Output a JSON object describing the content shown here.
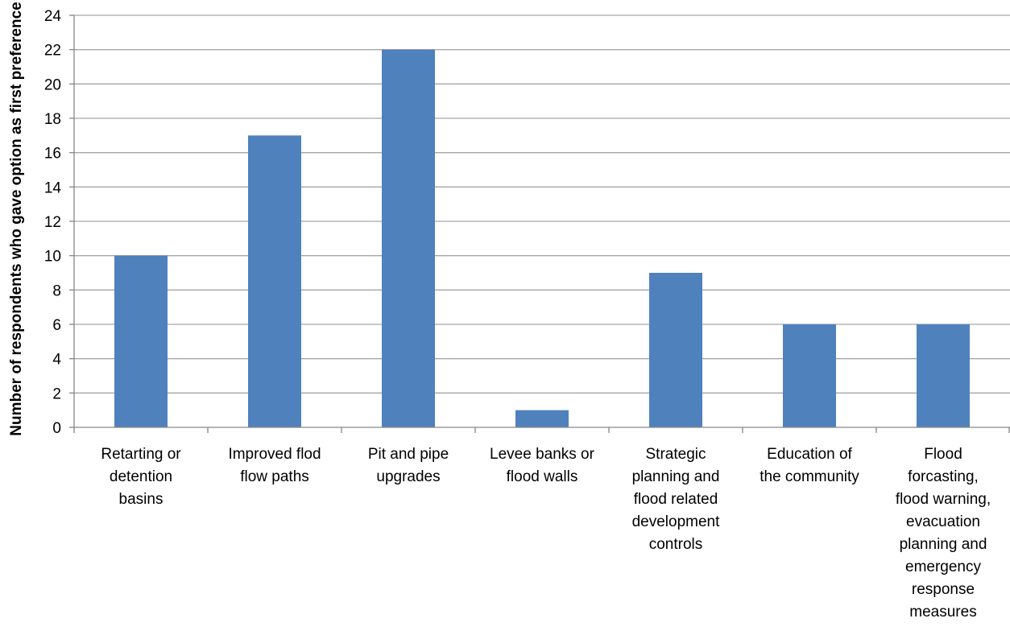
{
  "chart_data": {
    "type": "bar",
    "title": "",
    "xlabel": "",
    "ylabel": "Number of respondents who gave option as first preference",
    "ylim": [
      0,
      24
    ],
    "ytick_step": 2,
    "grid": true,
    "colors": {
      "bar": "#4f81bd",
      "grid": "#a6a6a6",
      "axis": "#868686"
    },
    "categories": [
      [
        "Retarting or",
        "detention",
        "basins"
      ],
      [
        "Improved flod",
        "flow paths"
      ],
      [
        "Pit and pipe",
        "upgrades"
      ],
      [
        "Levee banks or",
        "flood walls"
      ],
      [
        "Strategic",
        "planning and",
        "flood related",
        "development",
        "controls"
      ],
      [
        "Education of",
        "the community"
      ],
      [
        "Flood",
        "forcasting,",
        "flood warning,",
        "evacuation",
        "planning and",
        "emergency",
        "response",
        "measures"
      ]
    ],
    "values": [
      10,
      17,
      22,
      1,
      9,
      6,
      6
    ]
  }
}
